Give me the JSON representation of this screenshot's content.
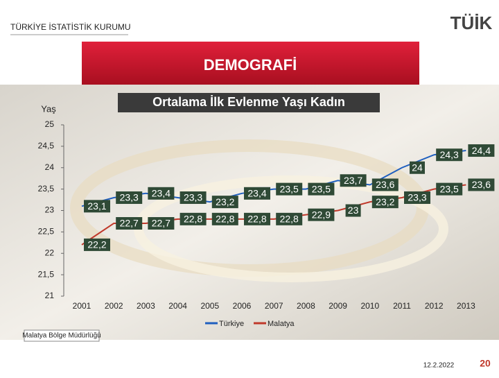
{
  "header": {
    "organization": "TÜRKİYE İSTATİSTİK KURUMU",
    "logo": "TÜİK",
    "section": "DEMOGRAFİ"
  },
  "chart_data": {
    "type": "line",
    "title": "Ortalama İlk Evlenme Yaşı Kadın",
    "y_label": "Yaş",
    "categories": [
      "2001",
      "2002",
      "2003",
      "2004",
      "2005",
      "2006",
      "2007",
      "2008",
      "2009",
      "2010",
      "2011",
      "2012",
      "2013"
    ],
    "series": [
      {
        "name": "Türkiye",
        "color": "#1f5fbf",
        "values": [
          23.1,
          23.3,
          23.4,
          23.3,
          23.2,
          23.4,
          23.5,
          23.5,
          23.7,
          23.6,
          24,
          24.3,
          24.4
        ],
        "value_labels": [
          "23,1",
          "23,3",
          "23,4",
          "23,3",
          "23,2",
          "23,4",
          "23,5",
          "23,5",
          "23,7",
          "23,6",
          "24",
          "24,3",
          "24,4"
        ]
      },
      {
        "name": "Malatya",
        "color": "#c0392b",
        "values": [
          22.2,
          22.7,
          22.7,
          22.8,
          22.8,
          22.8,
          22.8,
          22.9,
          23,
          23.2,
          23.3,
          23.5,
          23.6
        ],
        "value_labels": [
          "22,2",
          "22,7",
          "22,7",
          "22,8",
          "22,8",
          "22,8",
          "22,8",
          "22,9",
          "23",
          "23,2",
          "23,3",
          "23,5",
          "23,6"
        ]
      }
    ],
    "ylim": [
      21,
      25
    ],
    "yticks": [
      21,
      {
        "value": 21.5,
        "label": "21,5"
      },
      22,
      {
        "value": 22.5,
        "label": "22,5"
      },
      23,
      {
        "value": 23.5,
        "label": "23,5"
      },
      24,
      {
        "value": 24.5,
        "label": "24,5"
      },
      25
    ],
    "legend": "bottom"
  },
  "footer": {
    "office": "Malatya Bölge Müdürlüğü",
    "date": "12.2.2022",
    "page": "20"
  }
}
